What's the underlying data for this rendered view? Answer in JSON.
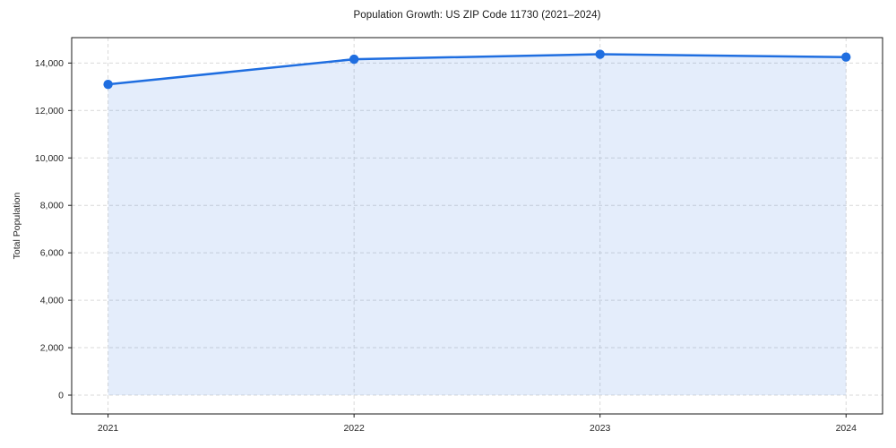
{
  "chart_data": {
    "type": "line",
    "title": "Population Growth: US ZIP Code 11730 (2021–2024)",
    "xlabel": "",
    "ylabel": "Total Population",
    "categories": [
      "2021",
      "2022",
      "2023",
      "2024"
    ],
    "series": [
      {
        "name": "Total Population",
        "values": [
          13100,
          14160,
          14370,
          14250
        ]
      }
    ],
    "y_ticks": [
      0,
      2000,
      4000,
      6000,
      8000,
      10000,
      12000,
      14000
    ],
    "y_tick_labels": [
      "0",
      "2,000",
      "4,000",
      "6,000",
      "8,000",
      "10,000",
      "12,000",
      "14,000"
    ],
    "ylim": [
      0,
      15000
    ],
    "grid": "dashed",
    "legend": "none",
    "area_fill": true,
    "marker": "circle",
    "colors": {
      "line": "#1f6ee0",
      "fill_rgba": "rgba(31, 110, 224, 0.12)",
      "grid": "#d9d9d9",
      "spine": "#1a1a1a",
      "text": "#262626"
    }
  }
}
